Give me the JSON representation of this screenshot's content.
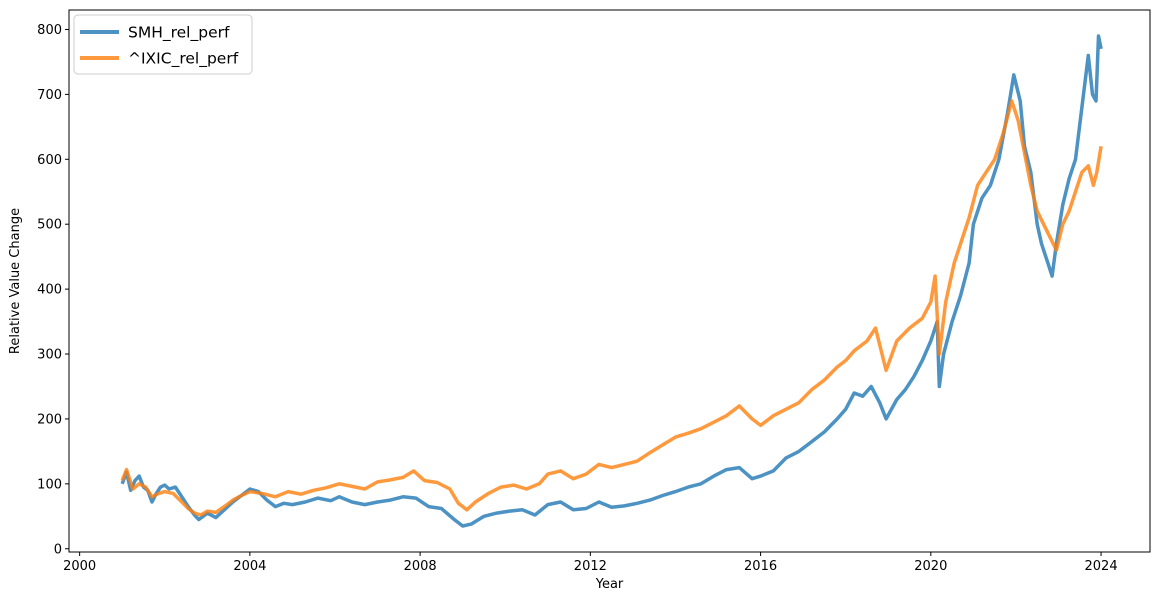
{
  "chart_data": {
    "type": "line",
    "xlabel": "Year",
    "ylabel": "Relative Value Change",
    "xlim": [
      1999.75,
      2025.15
    ],
    "ylim": [
      -5,
      830
    ],
    "x_ticks": [
      2000,
      2004,
      2008,
      2012,
      2016,
      2020,
      2024
    ],
    "y_ticks": [
      0,
      100,
      200,
      300,
      400,
      500,
      600,
      700,
      800
    ],
    "grid": false,
    "legend_position": "top-left",
    "series": [
      {
        "name": "SMH_rel_perf",
        "color": "#1f77b4",
        "points": [
          [
            2001.0,
            100
          ],
          [
            2001.1,
            118
          ],
          [
            2001.2,
            90
          ],
          [
            2001.3,
            105
          ],
          [
            2001.4,
            112
          ],
          [
            2001.5,
            95
          ],
          [
            2001.6,
            90
          ],
          [
            2001.7,
            72
          ],
          [
            2001.8,
            85
          ],
          [
            2001.9,
            95
          ],
          [
            2002.0,
            98
          ],
          [
            2002.1,
            92
          ],
          [
            2002.25,
            95
          ],
          [
            2002.4,
            80
          ],
          [
            2002.55,
            65
          ],
          [
            2002.7,
            52
          ],
          [
            2002.8,
            45
          ],
          [
            2002.9,
            50
          ],
          [
            2003.0,
            55
          ],
          [
            2003.2,
            48
          ],
          [
            2003.4,
            60
          ],
          [
            2003.6,
            72
          ],
          [
            2003.8,
            82
          ],
          [
            2004.0,
            92
          ],
          [
            2004.2,
            88
          ],
          [
            2004.4,
            75
          ],
          [
            2004.6,
            65
          ],
          [
            2004.8,
            70
          ],
          [
            2005.0,
            68
          ],
          [
            2005.3,
            72
          ],
          [
            2005.6,
            78
          ],
          [
            2005.9,
            74
          ],
          [
            2006.1,
            80
          ],
          [
            2006.4,
            72
          ],
          [
            2006.7,
            68
          ],
          [
            2007.0,
            72
          ],
          [
            2007.3,
            75
          ],
          [
            2007.6,
            80
          ],
          [
            2007.9,
            78
          ],
          [
            2008.2,
            65
          ],
          [
            2008.5,
            62
          ],
          [
            2008.8,
            45
          ],
          [
            2009.0,
            35
          ],
          [
            2009.2,
            38
          ],
          [
            2009.5,
            50
          ],
          [
            2009.8,
            55
          ],
          [
            2010.1,
            58
          ],
          [
            2010.4,
            60
          ],
          [
            2010.7,
            52
          ],
          [
            2011.0,
            68
          ],
          [
            2011.3,
            72
          ],
          [
            2011.6,
            60
          ],
          [
            2011.9,
            62
          ],
          [
            2012.2,
            72
          ],
          [
            2012.5,
            64
          ],
          [
            2012.8,
            66
          ],
          [
            2013.1,
            70
          ],
          [
            2013.4,
            75
          ],
          [
            2013.7,
            82
          ],
          [
            2014.0,
            88
          ],
          [
            2014.3,
            95
          ],
          [
            2014.6,
            100
          ],
          [
            2014.9,
            112
          ],
          [
            2015.2,
            122
          ],
          [
            2015.5,
            125
          ],
          [
            2015.8,
            108
          ],
          [
            2016.0,
            112
          ],
          [
            2016.3,
            120
          ],
          [
            2016.6,
            140
          ],
          [
            2016.9,
            150
          ],
          [
            2017.2,
            165
          ],
          [
            2017.5,
            180
          ],
          [
            2017.8,
            200
          ],
          [
            2018.0,
            215
          ],
          [
            2018.2,
            240
          ],
          [
            2018.4,
            235
          ],
          [
            2018.6,
            250
          ],
          [
            2018.8,
            225
          ],
          [
            2018.95,
            200
          ],
          [
            2019.2,
            230
          ],
          [
            2019.4,
            245
          ],
          [
            2019.6,
            265
          ],
          [
            2019.8,
            290
          ],
          [
            2020.0,
            320
          ],
          [
            2020.15,
            350
          ],
          [
            2020.2,
            250
          ],
          [
            2020.3,
            300
          ],
          [
            2020.5,
            350
          ],
          [
            2020.7,
            390
          ],
          [
            2020.9,
            440
          ],
          [
            2021.0,
            500
          ],
          [
            2021.2,
            540
          ],
          [
            2021.4,
            560
          ],
          [
            2021.6,
            600
          ],
          [
            2021.8,
            670
          ],
          [
            2021.95,
            730
          ],
          [
            2022.1,
            690
          ],
          [
            2022.2,
            620
          ],
          [
            2022.35,
            580
          ],
          [
            2022.5,
            500
          ],
          [
            2022.6,
            470
          ],
          [
            2022.75,
            440
          ],
          [
            2022.85,
            420
          ],
          [
            2022.95,
            470
          ],
          [
            2023.1,
            530
          ],
          [
            2023.25,
            570
          ],
          [
            2023.4,
            600
          ],
          [
            2023.55,
            680
          ],
          [
            2023.7,
            760
          ],
          [
            2023.8,
            700
          ],
          [
            2023.88,
            690
          ],
          [
            2023.94,
            790
          ],
          [
            2024.0,
            770
          ]
        ]
      },
      {
        "name": "^IXIC_rel_perf",
        "color": "#ff7f0e",
        "points": [
          [
            2001.0,
            105
          ],
          [
            2001.1,
            122
          ],
          [
            2001.25,
            92
          ],
          [
            2001.4,
            100
          ],
          [
            2001.55,
            95
          ],
          [
            2001.7,
            80
          ],
          [
            2001.85,
            85
          ],
          [
            2002.0,
            88
          ],
          [
            2002.2,
            85
          ],
          [
            2002.4,
            72
          ],
          [
            2002.55,
            62
          ],
          [
            2002.7,
            55
          ],
          [
            2002.85,
            52
          ],
          [
            2003.0,
            58
          ],
          [
            2003.2,
            56
          ],
          [
            2003.4,
            65
          ],
          [
            2003.6,
            75
          ],
          [
            2003.8,
            82
          ],
          [
            2004.0,
            88
          ],
          [
            2004.3,
            85
          ],
          [
            2004.6,
            80
          ],
          [
            2004.9,
            88
          ],
          [
            2005.2,
            84
          ],
          [
            2005.5,
            90
          ],
          [
            2005.8,
            94
          ],
          [
            2006.1,
            100
          ],
          [
            2006.4,
            96
          ],
          [
            2006.7,
            92
          ],
          [
            2007.0,
            103
          ],
          [
            2007.3,
            106
          ],
          [
            2007.6,
            110
          ],
          [
            2007.85,
            120
          ],
          [
            2008.1,
            105
          ],
          [
            2008.4,
            102
          ],
          [
            2008.7,
            92
          ],
          [
            2008.9,
            70
          ],
          [
            2009.1,
            60
          ],
          [
            2009.3,
            72
          ],
          [
            2009.6,
            85
          ],
          [
            2009.9,
            95
          ],
          [
            2010.2,
            98
          ],
          [
            2010.5,
            92
          ],
          [
            2010.8,
            100
          ],
          [
            2011.0,
            115
          ],
          [
            2011.3,
            120
          ],
          [
            2011.6,
            108
          ],
          [
            2011.9,
            115
          ],
          [
            2012.2,
            130
          ],
          [
            2012.5,
            125
          ],
          [
            2012.8,
            130
          ],
          [
            2013.1,
            135
          ],
          [
            2013.4,
            148
          ],
          [
            2013.7,
            160
          ],
          [
            2014.0,
            172
          ],
          [
            2014.3,
            178
          ],
          [
            2014.6,
            185
          ],
          [
            2014.9,
            195
          ],
          [
            2015.2,
            205
          ],
          [
            2015.5,
            220
          ],
          [
            2015.8,
            200
          ],
          [
            2016.0,
            190
          ],
          [
            2016.3,
            205
          ],
          [
            2016.6,
            215
          ],
          [
            2016.9,
            225
          ],
          [
            2017.2,
            245
          ],
          [
            2017.5,
            260
          ],
          [
            2017.8,
            280
          ],
          [
            2018.0,
            290
          ],
          [
            2018.2,
            305
          ],
          [
            2018.5,
            320
          ],
          [
            2018.7,
            340
          ],
          [
            2018.95,
            275
          ],
          [
            2019.2,
            320
          ],
          [
            2019.5,
            340
          ],
          [
            2019.8,
            355
          ],
          [
            2020.0,
            380
          ],
          [
            2020.1,
            420
          ],
          [
            2020.2,
            300
          ],
          [
            2020.35,
            380
          ],
          [
            2020.55,
            440
          ],
          [
            2020.75,
            480
          ],
          [
            2020.9,
            510
          ],
          [
            2021.1,
            560
          ],
          [
            2021.3,
            580
          ],
          [
            2021.5,
            600
          ],
          [
            2021.7,
            640
          ],
          [
            2021.9,
            690
          ],
          [
            2022.05,
            660
          ],
          [
            2022.2,
            610
          ],
          [
            2022.35,
            560
          ],
          [
            2022.5,
            520
          ],
          [
            2022.65,
            500
          ],
          [
            2022.8,
            480
          ],
          [
            2022.95,
            460
          ],
          [
            2023.1,
            500
          ],
          [
            2023.25,
            520
          ],
          [
            2023.4,
            550
          ],
          [
            2023.55,
            580
          ],
          [
            2023.7,
            590
          ],
          [
            2023.82,
            560
          ],
          [
            2023.9,
            580
          ],
          [
            2024.0,
            620
          ]
        ]
      }
    ]
  }
}
